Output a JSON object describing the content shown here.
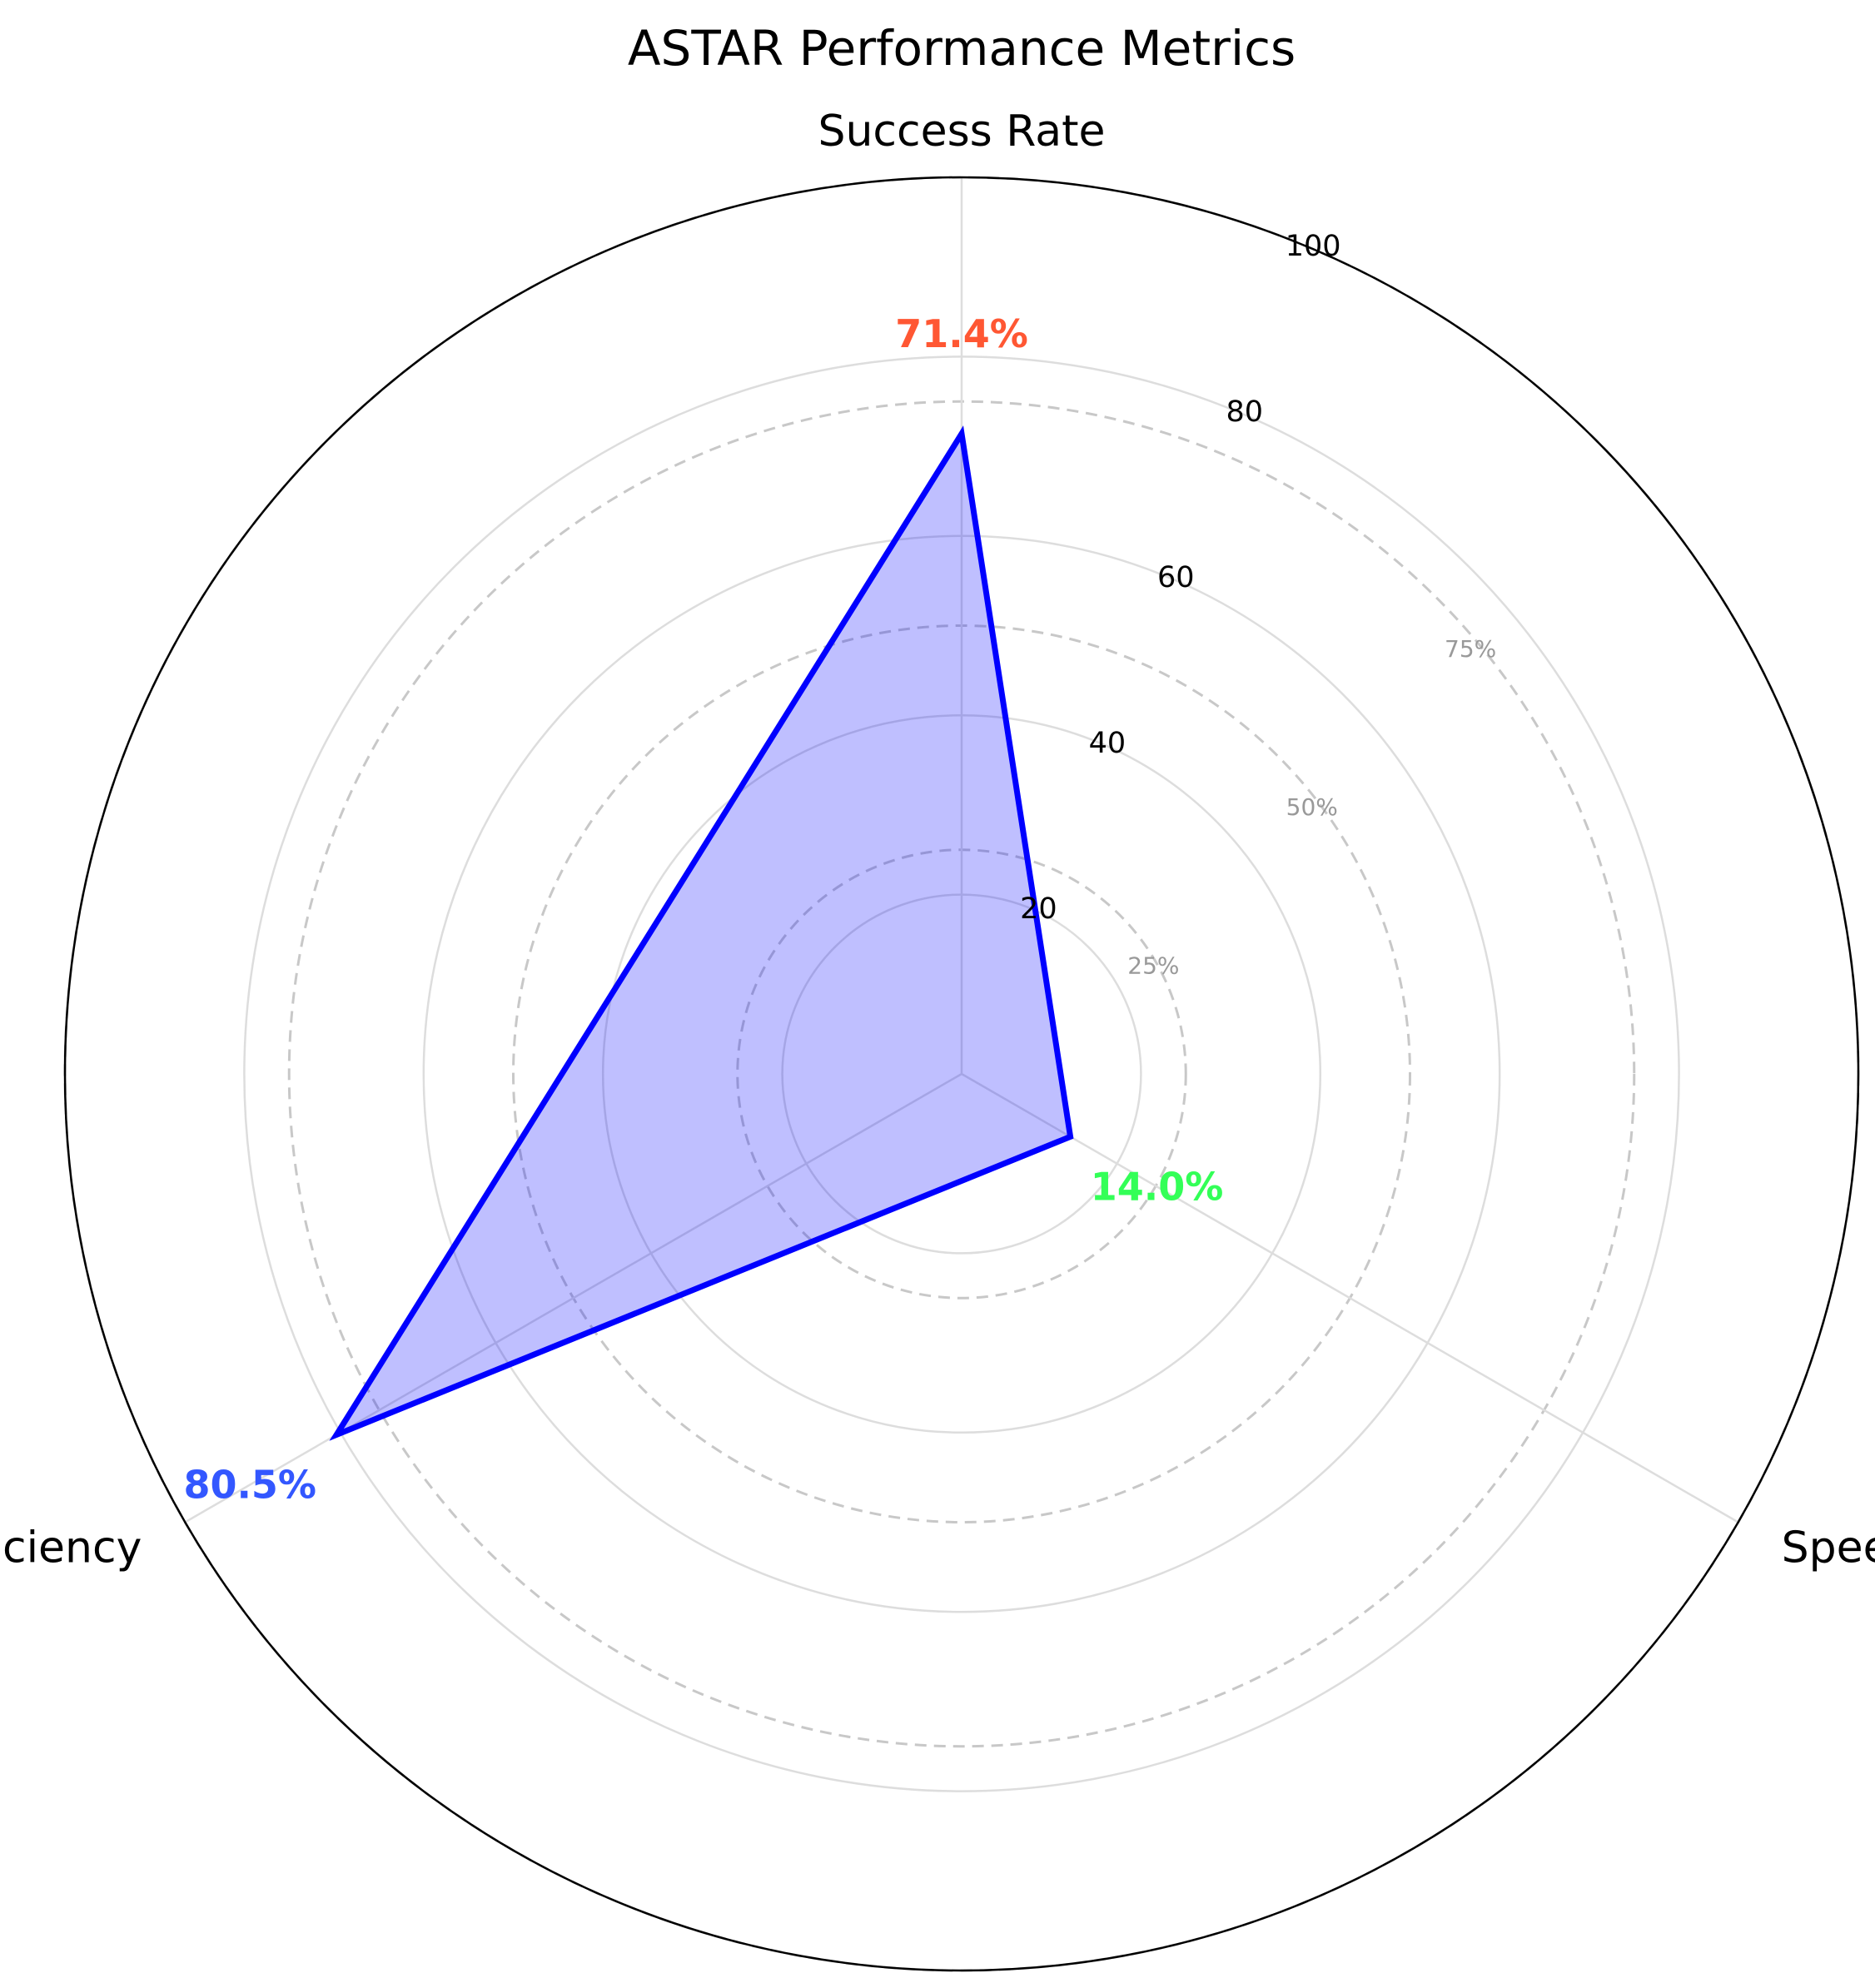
{
  "chart_data": {
    "type": "radar",
    "title": "ASTAR Performance Metrics",
    "axes": [
      "Success Rate",
      "Speed",
      "Efficiency"
    ],
    "values": [
      71.4,
      14.0,
      80.5
    ],
    "value_labels": [
      "71.4%",
      "14.0%",
      "80.5%"
    ],
    "value_label_colors": [
      "#ff5733",
      "#33ff57",
      "#3357ff"
    ],
    "rlim": [
      0,
      100
    ],
    "r_ticks": [
      20,
      40,
      60,
      80,
      100
    ],
    "r_tick_labels": [
      "20",
      "40",
      "60",
      "80",
      "100"
    ],
    "reference_levels": [
      25,
      50,
      75,
      100
    ],
    "reference_labels": [
      "25%",
      "50%",
      "75%"
    ],
    "line_color": "#0000ff",
    "fill_color": "#0000ff",
    "grid": true
  }
}
